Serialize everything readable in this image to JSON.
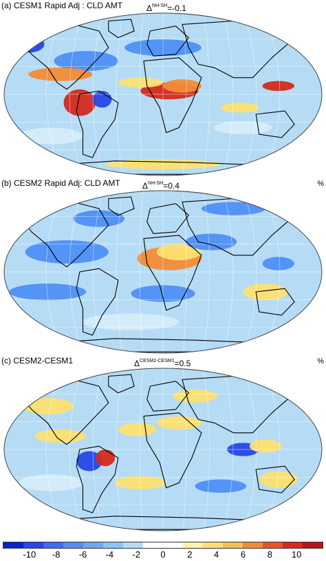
{
  "panels": [
    {
      "title": "(a) CESM1 Rapid Adj : CLD AMT",
      "delta_sup": "NH-SH",
      "delta_value": "=-0.1",
      "unit": ""
    },
    {
      "title": "(b) CESM2 Rapid Adj: CLD AMT",
      "delta_sup": "NH-SH",
      "delta_value": "=0.4",
      "unit": "%"
    },
    {
      "title": "(c) CESM2-CESM1",
      "delta_sup": "CESM2-CESM1",
      "delta_value": "=0.5",
      "unit": "%"
    }
  ],
  "delta_symbol": "Δ",
  "colorbar": {
    "colors": [
      "#0a22c9",
      "#2747e6",
      "#3c6df2",
      "#4f8ff7",
      "#6aaaf6",
      "#8cc5f4",
      "#b6dcf5",
      "#ffffff",
      "#ffffff",
      "#fdf3a8",
      "#fde071",
      "#f9be52",
      "#f38b36",
      "#e85524",
      "#d42a1d",
      "#b7141c"
    ],
    "tick_labels": [
      "-10",
      "-8",
      "-6",
      "-4",
      "-2",
      "0",
      "2",
      "4",
      "6",
      "8",
      "10"
    ]
  },
  "map_colors": {
    "background": "#b6dcf5",
    "ocean_light": "#d6ecfa",
    "blue": "#4f8ff7",
    "dark_blue": "#2747e6",
    "yellow": "#fde071",
    "orange": "#f38b36",
    "red": "#d42a1d",
    "coast": "#000000",
    "grid": "#ffffff"
  }
}
